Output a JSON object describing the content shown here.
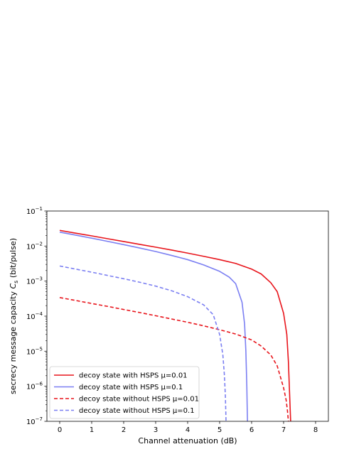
{
  "chart_data": {
    "type": "line",
    "xlabel": "Channel attenuation (dB)",
    "ylabel_prefix": "secrecy message capacity ",
    "ylabel_symbol": "C",
    "ylabel_subscript": "s",
    "ylabel_suffix": " (bit/pulse)",
    "xlim": [
      -0.4,
      8.4
    ],
    "ylim": [
      1e-07,
      0.1
    ],
    "yscale": "log",
    "x_ticks": [
      0,
      1,
      2,
      3,
      4,
      5,
      6,
      7,
      8
    ],
    "x_tick_labels": [
      "0",
      "1",
      "2",
      "3",
      "4",
      "5",
      "6",
      "7",
      "8"
    ],
    "y_ticks": [
      0.1,
      0.01,
      0.001,
      0.0001,
      1e-05,
      1e-06,
      1e-07
    ],
    "y_tick_bases": [
      "10",
      "10",
      "10",
      "10",
      "10",
      "10",
      "10"
    ],
    "y_tick_exponents": [
      "−1",
      "−2",
      "−3",
      "−4",
      "−5",
      "−6",
      "−7"
    ],
    "grid": false,
    "legend_position": "lower-left",
    "series": [
      {
        "name": "decoy state with HSPS μ=0.01",
        "color": "#e8141b",
        "dash": "solid",
        "x": [
          0,
          0.5,
          1,
          1.5,
          2,
          2.5,
          3,
          3.5,
          4,
          4.5,
          5,
          5.5,
          6,
          6.3,
          6.6,
          6.8,
          7.0,
          7.1,
          7.15,
          7.2,
          7.22
        ],
        "y": [
          0.028,
          0.0233,
          0.0195,
          0.0162,
          0.0135,
          0.0112,
          0.0093,
          0.0077,
          0.0063,
          0.0051,
          0.0041,
          0.0032,
          0.0022,
          0.0016,
          0.0009,
          0.0005,
          0.00012,
          3e-05,
          5e-06,
          3e-07,
          1e-07
        ]
      },
      {
        "name": "decoy state with HSPS μ=0.1",
        "color": "#7b7ff2",
        "dash": "solid",
        "x": [
          0,
          0.5,
          1,
          1.5,
          2,
          2.5,
          3,
          3.5,
          4,
          4.5,
          5,
          5.3,
          5.5,
          5.7,
          5.78,
          5.82,
          5.85,
          5.86,
          5.87
        ],
        "y": [
          0.025,
          0.0205,
          0.0168,
          0.0136,
          0.011,
          0.0088,
          0.007,
          0.0054,
          0.0041,
          0.0029,
          0.0019,
          0.0013,
          0.00085,
          0.00025,
          6e-05,
          1e-05,
          1e-06,
          3e-07,
          1e-07
        ]
      },
      {
        "name": "decoy state without HSPS μ=0.01",
        "color": "#e8141b",
        "dash": "dashed",
        "x": [
          0,
          0.5,
          1,
          1.5,
          2,
          2.5,
          3,
          3.5,
          4,
          4.5,
          5,
          5.5,
          6,
          6.3,
          6.6,
          6.8,
          7.0,
          7.08,
          7.12,
          7.15
        ],
        "y": [
          0.00034,
          0.00028,
          0.00023,
          0.00019,
          0.000155,
          0.000127,
          0.000103,
          8.3e-05,
          6.7e-05,
          5.3e-05,
          4.1e-05,
          3.1e-05,
          2.1e-05,
          1.4e-05,
          7.8e-06,
          3.8e-06,
          9e-07,
          4e-07,
          2e-07,
          1e-07
        ]
      },
      {
        "name": "decoy state without HSPS μ=0.1",
        "color": "#7b7ff2",
        "dash": "dashed",
        "x": [
          0,
          0.5,
          1,
          1.5,
          2,
          2.5,
          3,
          3.5,
          4,
          4.5,
          4.8,
          5.0,
          5.1,
          5.15,
          5.18,
          5.2
        ],
        "y": [
          0.0027,
          0.0022,
          0.0018,
          0.00145,
          0.00117,
          0.00093,
          0.00072,
          0.00053,
          0.00036,
          0.00021,
          0.00011,
          3e-05,
          8e-06,
          2e-06,
          5e-07,
          1e-07
        ]
      }
    ]
  }
}
